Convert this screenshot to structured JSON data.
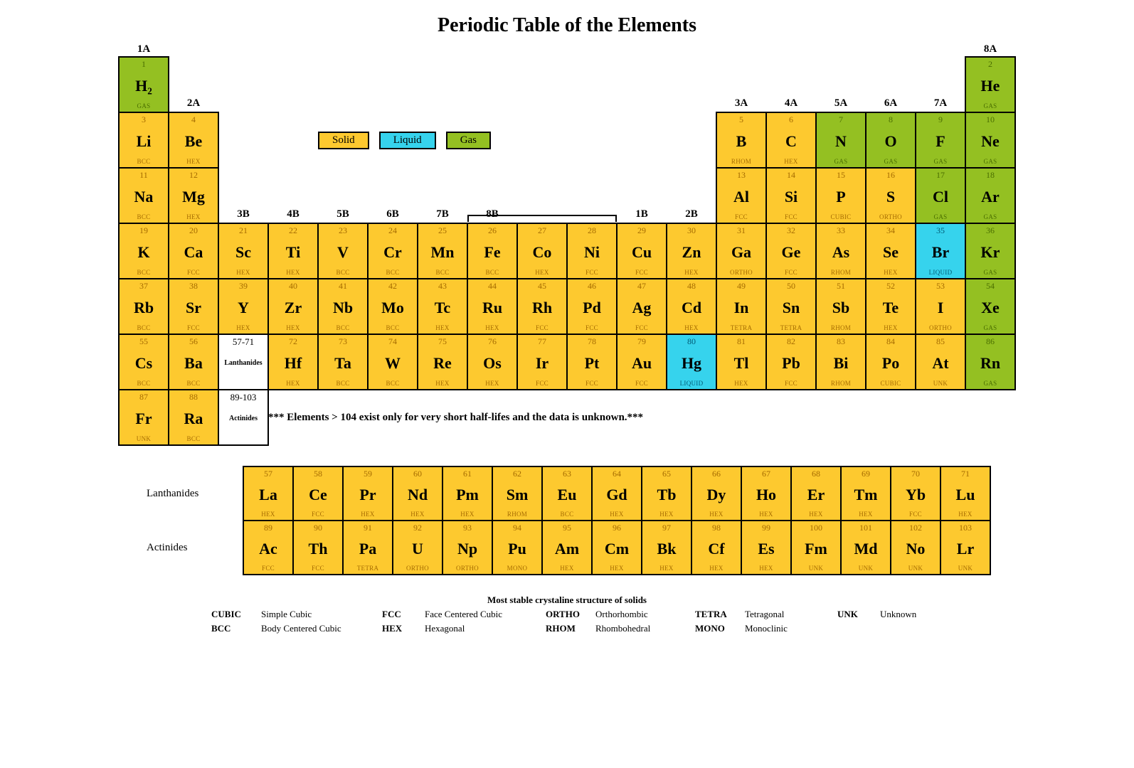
{
  "title": "Periodic Table of the Elements",
  "colors": {
    "solid": "#fdc92f",
    "liquid": "#36d3ed",
    "gas": "#94c022",
    "placeholder": "#ffffff",
    "text_solid": "#a56b00",
    "text_gas": "#4a6e00",
    "text_liquid": "#005a75",
    "border": "#000000"
  },
  "legend": {
    "solid": "Solid",
    "liquid": "Liquid",
    "gas": "Gas"
  },
  "group_labels": {
    "1": "1A",
    "2": "2A",
    "3": "3B",
    "4": "4B",
    "5": "5B",
    "6": "6B",
    "7": "7B",
    "8": "8B",
    "11": "1B",
    "12": "2B",
    "13": "3A",
    "14": "4A",
    "15": "5A",
    "16": "6A",
    "17": "7A",
    "18": "8A"
  },
  "note": "*** Elements > 104 exist only for very short half-lifes and the data is unknown.***",
  "f_labels": {
    "lan": "Lanthanides",
    "act": "Actinides"
  },
  "struct_legend_title": "Most stable crystaline structure of solids",
  "struct_legend": [
    [
      "CUBIC",
      "Simple Cubic",
      "FCC",
      "Face Centered Cubic",
      "ORTHO",
      "Orthorhombic",
      "TETRA",
      "Tetragonal",
      "UNK",
      "Unknown"
    ],
    [
      "BCC",
      "Body Centered Cubic",
      "HEX",
      "Hexagonal",
      "RHOM",
      "Rhombohedral",
      "MONO",
      "Monoclinic",
      "",
      ""
    ]
  ],
  "elements": [
    {
      "n": 1,
      "s": "H₂",
      "st": "GAS",
      "ph": "gas",
      "r": 1,
      "c": 1
    },
    {
      "n": 2,
      "s": "He",
      "st": "GAS",
      "ph": "gas",
      "r": 1,
      "c": 18
    },
    {
      "n": 3,
      "s": "Li",
      "st": "BCC",
      "ph": "solid",
      "r": 2,
      "c": 1
    },
    {
      "n": 4,
      "s": "Be",
      "st": "HEX",
      "ph": "solid",
      "r": 2,
      "c": 2
    },
    {
      "n": 5,
      "s": "B",
      "st": "RHOM",
      "ph": "solid",
      "r": 2,
      "c": 13
    },
    {
      "n": 6,
      "s": "C",
      "st": "HEX",
      "ph": "solid",
      "r": 2,
      "c": 14
    },
    {
      "n": 7,
      "s": "N",
      "st": "GAS",
      "ph": "gas",
      "r": 2,
      "c": 15
    },
    {
      "n": 8,
      "s": "O",
      "st": "GAS",
      "ph": "gas",
      "r": 2,
      "c": 16
    },
    {
      "n": 9,
      "s": "F",
      "st": "GAS",
      "ph": "gas",
      "r": 2,
      "c": 17
    },
    {
      "n": 10,
      "s": "Ne",
      "st": "GAS",
      "ph": "gas",
      "r": 2,
      "c": 18
    },
    {
      "n": 11,
      "s": "Na",
      "st": "BCC",
      "ph": "solid",
      "r": 3,
      "c": 1
    },
    {
      "n": 12,
      "s": "Mg",
      "st": "HEX",
      "ph": "solid",
      "r": 3,
      "c": 2
    },
    {
      "n": 13,
      "s": "Al",
      "st": "FCC",
      "ph": "solid",
      "r": 3,
      "c": 13
    },
    {
      "n": 14,
      "s": "Si",
      "st": "FCC",
      "ph": "solid",
      "r": 3,
      "c": 14
    },
    {
      "n": 15,
      "s": "P",
      "st": "CUBIC",
      "ph": "solid",
      "r": 3,
      "c": 15
    },
    {
      "n": 16,
      "s": "S",
      "st": "ORTHO",
      "ph": "solid",
      "r": 3,
      "c": 16
    },
    {
      "n": 17,
      "s": "Cl",
      "st": "GAS",
      "ph": "gas",
      "r": 3,
      "c": 17
    },
    {
      "n": 18,
      "s": "Ar",
      "st": "GAS",
      "ph": "gas",
      "r": 3,
      "c": 18
    },
    {
      "n": 19,
      "s": "K",
      "st": "BCC",
      "ph": "solid",
      "r": 4,
      "c": 1
    },
    {
      "n": 20,
      "s": "Ca",
      "st": "FCC",
      "ph": "solid",
      "r": 4,
      "c": 2
    },
    {
      "n": 21,
      "s": "Sc",
      "st": "HEX",
      "ph": "solid",
      "r": 4,
      "c": 3
    },
    {
      "n": 22,
      "s": "Ti",
      "st": "HEX",
      "ph": "solid",
      "r": 4,
      "c": 4
    },
    {
      "n": 23,
      "s": "V",
      "st": "BCC",
      "ph": "solid",
      "r": 4,
      "c": 5
    },
    {
      "n": 24,
      "s": "Cr",
      "st": "BCC",
      "ph": "solid",
      "r": 4,
      "c": 6
    },
    {
      "n": 25,
      "s": "Mn",
      "st": "BCC",
      "ph": "solid",
      "r": 4,
      "c": 7
    },
    {
      "n": 26,
      "s": "Fe",
      "st": "BCC",
      "ph": "solid",
      "r": 4,
      "c": 8
    },
    {
      "n": 27,
      "s": "Co",
      "st": "HEX",
      "ph": "solid",
      "r": 4,
      "c": 9
    },
    {
      "n": 28,
      "s": "Ni",
      "st": "FCC",
      "ph": "solid",
      "r": 4,
      "c": 10
    },
    {
      "n": 29,
      "s": "Cu",
      "st": "FCC",
      "ph": "solid",
      "r": 4,
      "c": 11
    },
    {
      "n": 30,
      "s": "Zn",
      "st": "HEX",
      "ph": "solid",
      "r": 4,
      "c": 12
    },
    {
      "n": 31,
      "s": "Ga",
      "st": "ORTHO",
      "ph": "solid",
      "r": 4,
      "c": 13
    },
    {
      "n": 32,
      "s": "Ge",
      "st": "FCC",
      "ph": "solid",
      "r": 4,
      "c": 14
    },
    {
      "n": 33,
      "s": "As",
      "st": "RHOM",
      "ph": "solid",
      "r": 4,
      "c": 15
    },
    {
      "n": 34,
      "s": "Se",
      "st": "HEX",
      "ph": "solid",
      "r": 4,
      "c": 16
    },
    {
      "n": 35,
      "s": "Br",
      "st": "LIQUID",
      "ph": "liquid",
      "r": 4,
      "c": 17
    },
    {
      "n": 36,
      "s": "Kr",
      "st": "GAS",
      "ph": "gas",
      "r": 4,
      "c": 18
    },
    {
      "n": 37,
      "s": "Rb",
      "st": "BCC",
      "ph": "solid",
      "r": 5,
      "c": 1
    },
    {
      "n": 38,
      "s": "Sr",
      "st": "FCC",
      "ph": "solid",
      "r": 5,
      "c": 2
    },
    {
      "n": 39,
      "s": "Y",
      "st": "HEX",
      "ph": "solid",
      "r": 5,
      "c": 3
    },
    {
      "n": 40,
      "s": "Zr",
      "st": "HEX",
      "ph": "solid",
      "r": 5,
      "c": 4
    },
    {
      "n": 41,
      "s": "Nb",
      "st": "BCC",
      "ph": "solid",
      "r": 5,
      "c": 5
    },
    {
      "n": 42,
      "s": "Mo",
      "st": "BCC",
      "ph": "solid",
      "r": 5,
      "c": 6
    },
    {
      "n": 43,
      "s": "Tc",
      "st": "HEX",
      "ph": "solid",
      "r": 5,
      "c": 7
    },
    {
      "n": 44,
      "s": "Ru",
      "st": "HEX",
      "ph": "solid",
      "r": 5,
      "c": 8
    },
    {
      "n": 45,
      "s": "Rh",
      "st": "FCC",
      "ph": "solid",
      "r": 5,
      "c": 9
    },
    {
      "n": 46,
      "s": "Pd",
      "st": "FCC",
      "ph": "solid",
      "r": 5,
      "c": 10
    },
    {
      "n": 47,
      "s": "Ag",
      "st": "FCC",
      "ph": "solid",
      "r": 5,
      "c": 11
    },
    {
      "n": 48,
      "s": "Cd",
      "st": "HEX",
      "ph": "solid",
      "r": 5,
      "c": 12
    },
    {
      "n": 49,
      "s": "In",
      "st": "TETRA",
      "ph": "solid",
      "r": 5,
      "c": 13
    },
    {
      "n": 50,
      "s": "Sn",
      "st": "TETRA",
      "ph": "solid",
      "r": 5,
      "c": 14
    },
    {
      "n": 51,
      "s": "Sb",
      "st": "RHOM",
      "ph": "solid",
      "r": 5,
      "c": 15
    },
    {
      "n": 52,
      "s": "Te",
      "st": "HEX",
      "ph": "solid",
      "r": 5,
      "c": 16
    },
    {
      "n": 53,
      "s": "I",
      "st": "ORTHO",
      "ph": "solid",
      "r": 5,
      "c": 17
    },
    {
      "n": 54,
      "s": "Xe",
      "st": "GAS",
      "ph": "gas",
      "r": 5,
      "c": 18
    },
    {
      "n": 55,
      "s": "Cs",
      "st": "BCC",
      "ph": "solid",
      "r": 6,
      "c": 1
    },
    {
      "n": 56,
      "s": "Ba",
      "st": "BCC",
      "ph": "solid",
      "r": 6,
      "c": 2
    },
    {
      "n": "57-71",
      "s": "Lanthanides",
      "st": "",
      "ph": "placeholder",
      "r": 6,
      "c": 3
    },
    {
      "n": 72,
      "s": "Hf",
      "st": "HEX",
      "ph": "solid",
      "r": 6,
      "c": 4
    },
    {
      "n": 73,
      "s": "Ta",
      "st": "BCC",
      "ph": "solid",
      "r": 6,
      "c": 5
    },
    {
      "n": 74,
      "s": "W",
      "st": "BCC",
      "ph": "solid",
      "r": 6,
      "c": 6
    },
    {
      "n": 75,
      "s": "Re",
      "st": "HEX",
      "ph": "solid",
      "r": 6,
      "c": 7
    },
    {
      "n": 76,
      "s": "Os",
      "st": "HEX",
      "ph": "solid",
      "r": 6,
      "c": 8
    },
    {
      "n": 77,
      "s": "Ir",
      "st": "FCC",
      "ph": "solid",
      "r": 6,
      "c": 9
    },
    {
      "n": 78,
      "s": "Pt",
      "st": "FCC",
      "ph": "solid",
      "r": 6,
      "c": 10
    },
    {
      "n": 79,
      "s": "Au",
      "st": "FCC",
      "ph": "solid",
      "r": 6,
      "c": 11
    },
    {
      "n": 80,
      "s": "Hg",
      "st": "LIQUID",
      "ph": "liquid",
      "r": 6,
      "c": 12
    },
    {
      "n": 81,
      "s": "Tl",
      "st": "HEX",
      "ph": "solid",
      "r": 6,
      "c": 13
    },
    {
      "n": 82,
      "s": "Pb",
      "st": "FCC",
      "ph": "solid",
      "r": 6,
      "c": 14
    },
    {
      "n": 83,
      "s": "Bi",
      "st": "RHOM",
      "ph": "solid",
      "r": 6,
      "c": 15
    },
    {
      "n": 84,
      "s": "Po",
      "st": "CUBIC",
      "ph": "solid",
      "r": 6,
      "c": 16
    },
    {
      "n": 85,
      "s": "At",
      "st": "UNK",
      "ph": "solid",
      "r": 6,
      "c": 17
    },
    {
      "n": 86,
      "s": "Rn",
      "st": "GAS",
      "ph": "gas",
      "r": 6,
      "c": 18
    },
    {
      "n": 87,
      "s": "Fr",
      "st": "UNK",
      "ph": "solid",
      "r": 7,
      "c": 1
    },
    {
      "n": 88,
      "s": "Ra",
      "st": "BCC",
      "ph": "solid",
      "r": 7,
      "c": 2
    },
    {
      "n": "89-103",
      "s": "Actinides",
      "st": "",
      "ph": "placeholder",
      "r": 7,
      "c": 3
    }
  ],
  "lanthanides": [
    {
      "n": 57,
      "s": "La",
      "st": "HEX"
    },
    {
      "n": 58,
      "s": "Ce",
      "st": "FCC"
    },
    {
      "n": 59,
      "s": "Pr",
      "st": "HEX"
    },
    {
      "n": 60,
      "s": "Nd",
      "st": "HEX"
    },
    {
      "n": 61,
      "s": "Pm",
      "st": "HEX"
    },
    {
      "n": 62,
      "s": "Sm",
      "st": "RHOM"
    },
    {
      "n": 63,
      "s": "Eu",
      "st": "BCC"
    },
    {
      "n": 64,
      "s": "Gd",
      "st": "HEX"
    },
    {
      "n": 65,
      "s": "Tb",
      "st": "HEX"
    },
    {
      "n": 66,
      "s": "Dy",
      "st": "HEX"
    },
    {
      "n": 67,
      "s": "Ho",
      "st": "HEX"
    },
    {
      "n": 68,
      "s": "Er",
      "st": "HEX"
    },
    {
      "n": 69,
      "s": "Tm",
      "st": "HEX"
    },
    {
      "n": 70,
      "s": "Yb",
      "st": "FCC"
    },
    {
      "n": 71,
      "s": "Lu",
      "st": "HEX"
    }
  ],
  "actinides": [
    {
      "n": 89,
      "s": "Ac",
      "st": "FCC"
    },
    {
      "n": 90,
      "s": "Th",
      "st": "FCC"
    },
    {
      "n": 91,
      "s": "Pa",
      "st": "TETRA"
    },
    {
      "n": 92,
      "s": "U",
      "st": "ORTHO"
    },
    {
      "n": 93,
      "s": "Np",
      "st": "ORTHO"
    },
    {
      "n": 94,
      "s": "Pu",
      "st": "MONO"
    },
    {
      "n": 95,
      "s": "Am",
      "st": "HEX"
    },
    {
      "n": 96,
      "s": "Cm",
      "st": "HEX"
    },
    {
      "n": 97,
      "s": "Bk",
      "st": "HEX"
    },
    {
      "n": 98,
      "s": "Cf",
      "st": "HEX"
    },
    {
      "n": 99,
      "s": "Es",
      "st": "HEX"
    },
    {
      "n": 100,
      "s": "Fm",
      "st": "UNK"
    },
    {
      "n": 101,
      "s": "Md",
      "st": "UNK"
    },
    {
      "n": 102,
      "s": "No",
      "st": "UNK"
    },
    {
      "n": 103,
      "s": "Lr",
      "st": "UNK"
    }
  ]
}
